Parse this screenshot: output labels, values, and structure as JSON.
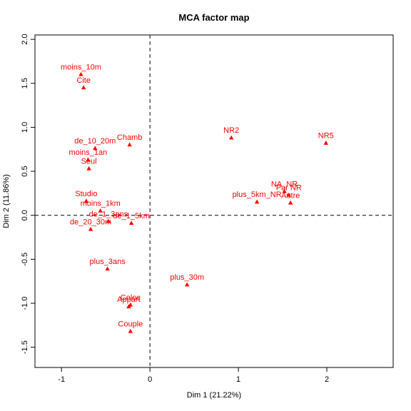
{
  "chart_data": {
    "type": "scatter",
    "title": "MCA factor map",
    "xlabel": "Dim 1 (21.22%)",
    "ylabel": "Dim 2 (11.86%)",
    "xlim": [
      -1.3,
      2.75
    ],
    "ylim": [
      -1.73,
      2.05
    ],
    "xticks": [
      "-1",
      "0",
      "1",
      "2"
    ],
    "yticks": [
      "-1.5",
      "-1.0",
      "-0.5",
      "0.0",
      "0.5",
      "1.0",
      "1.5",
      "2.0"
    ],
    "reference_lines": {
      "x": 0,
      "y": 0,
      "style": "dashed"
    },
    "marker": "triangle",
    "color": "#ff0000",
    "points": [
      {
        "label": "moins_10m",
        "x": -0.78,
        "y": 1.6
      },
      {
        "label": "Cite",
        "x": -0.75,
        "y": 1.45
      },
      {
        "label": "Chamb",
        "x": -0.23,
        "y": 0.8
      },
      {
        "label": "de_10_20m",
        "x": -0.62,
        "y": 0.76
      },
      {
        "label": "moins_1an",
        "x": -0.7,
        "y": 0.63
      },
      {
        "label": "Seul",
        "x": -0.69,
        "y": 0.53
      },
      {
        "label": "Studio",
        "x": -0.72,
        "y": 0.16
      },
      {
        "label": "moins_1km",
        "x": -0.56,
        "y": 0.05
      },
      {
        "label": "de_1_3ans",
        "x": -0.47,
        "y": -0.07
      },
      {
        "label": "de_1_5km",
        "x": -0.21,
        "y": -0.09
      },
      {
        "label": "de_20_30m",
        "x": -0.67,
        "y": -0.16
      },
      {
        "label": "NR2",
        "x": 0.92,
        "y": 0.88
      },
      {
        "label": "NR5",
        "x": 1.99,
        "y": 0.82
      },
      {
        "label": "NA_NR",
        "x": 1.52,
        "y": 0.27
      },
      {
        "label": "Par NR",
        "x": 1.57,
        "y": 0.23
      },
      {
        "label": "plus_5km_NR",
        "x": 1.21,
        "y": 0.15
      },
      {
        "label": "Autre",
        "x": 1.59,
        "y": 0.14
      },
      {
        "label": "plus_3ans",
        "x": -0.48,
        "y": -0.61
      },
      {
        "label": "plus_30m",
        "x": 0.42,
        "y": -0.79
      },
      {
        "label": "Coloc",
        "x": -0.22,
        "y": -1.02
      },
      {
        "label": "Appart",
        "x": -0.24,
        "y": -1.04
      },
      {
        "label": "Couple",
        "x": -0.22,
        "y": -1.32
      }
    ]
  }
}
